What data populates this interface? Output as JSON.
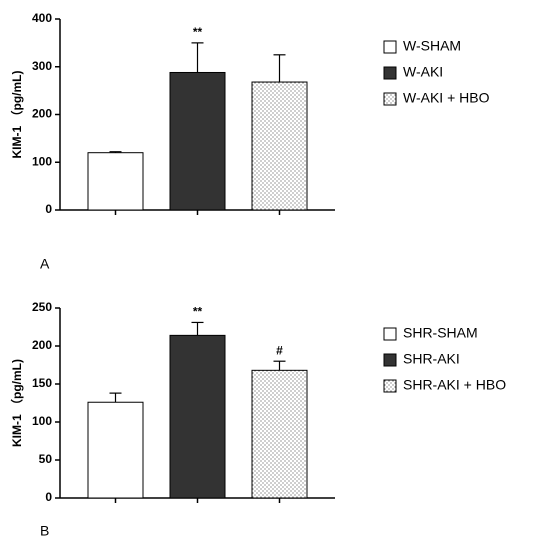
{
  "chart_data": [
    {
      "type": "bar",
      "panel": "A",
      "ylabel": "KIM-1 （pg/mL)",
      "categories": [
        "W-SHAM",
        "W-AKI",
        "W-AKI + HBO"
      ],
      "values": [
        120,
        288,
        268
      ],
      "errors": [
        2,
        62,
        57
      ],
      "annotations": [
        null,
        "**",
        null
      ],
      "colors": [
        "#ffffff",
        "#333333",
        "#ffffff"
      ],
      "patterns": [
        "none",
        "none",
        "dots"
      ],
      "ylim": [
        0,
        400
      ],
      "yticks": [
        0,
        100,
        200,
        300,
        400
      ]
    },
    {
      "type": "bar",
      "panel": "B",
      "ylabel": "KIM-1 （pg/mL)",
      "categories": [
        "SHR-SHAM",
        "SHR-AKI",
        "SHR-AKI + HBO"
      ],
      "values": [
        126,
        214,
        168
      ],
      "errors": [
        12,
        17,
        12
      ],
      "annotations": [
        null,
        "**",
        "#"
      ],
      "colors": [
        "#ffffff",
        "#333333",
        "#ffffff"
      ],
      "patterns": [
        "none",
        "none",
        "dots"
      ],
      "ylim": [
        0,
        250
      ],
      "yticks": [
        0,
        50,
        100,
        150,
        200,
        250
      ]
    }
  ]
}
